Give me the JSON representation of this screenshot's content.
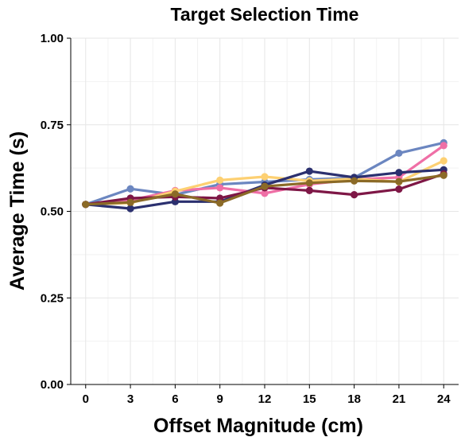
{
  "chart_data": {
    "type": "line",
    "title": "Target Selection Time",
    "xlabel": "Offset Magnitude (cm)",
    "ylabel": "Average Time (s)",
    "x": [
      0,
      3,
      6,
      9,
      12,
      15,
      18,
      21,
      24
    ],
    "x_tick_labels": [
      "0",
      "3",
      "6",
      "9",
      "12",
      "15",
      "18",
      "21",
      "24"
    ],
    "y_ticks": [
      0.0,
      0.25,
      0.5,
      0.75,
      1.0
    ],
    "y_tick_labels": [
      "0.00",
      "0.25",
      "0.50",
      "0.75",
      "1.00"
    ],
    "xlim": [
      -1,
      25
    ],
    "ylim": [
      0,
      1
    ],
    "grid": true,
    "legend": "none",
    "series": [
      {
        "color": "#6b86c0",
        "values": [
          0.52,
          0.565,
          0.548,
          0.578,
          0.585,
          0.592,
          0.597,
          0.668,
          0.698
        ]
      },
      {
        "color": "#ef6fa6",
        "values": [
          0.52,
          0.532,
          0.56,
          0.568,
          0.552,
          0.578,
          0.592,
          0.598,
          0.69
        ]
      },
      {
        "color": "#fdd072",
        "values": [
          0.52,
          0.524,
          0.558,
          0.59,
          0.6,
          0.588,
          0.594,
          0.585,
          0.646
        ]
      },
      {
        "color": "#2b306f",
        "values": [
          0.52,
          0.508,
          0.528,
          0.528,
          0.576,
          0.616,
          0.598,
          0.612,
          0.62
        ]
      },
      {
        "color": "#7e1746",
        "values": [
          0.52,
          0.538,
          0.542,
          0.538,
          0.568,
          0.56,
          0.548,
          0.564,
          0.608
        ]
      },
      {
        "color": "#8b6a27",
        "values": [
          0.52,
          0.526,
          0.55,
          0.524,
          0.572,
          0.582,
          0.588,
          0.586,
          0.604
        ]
      }
    ]
  }
}
